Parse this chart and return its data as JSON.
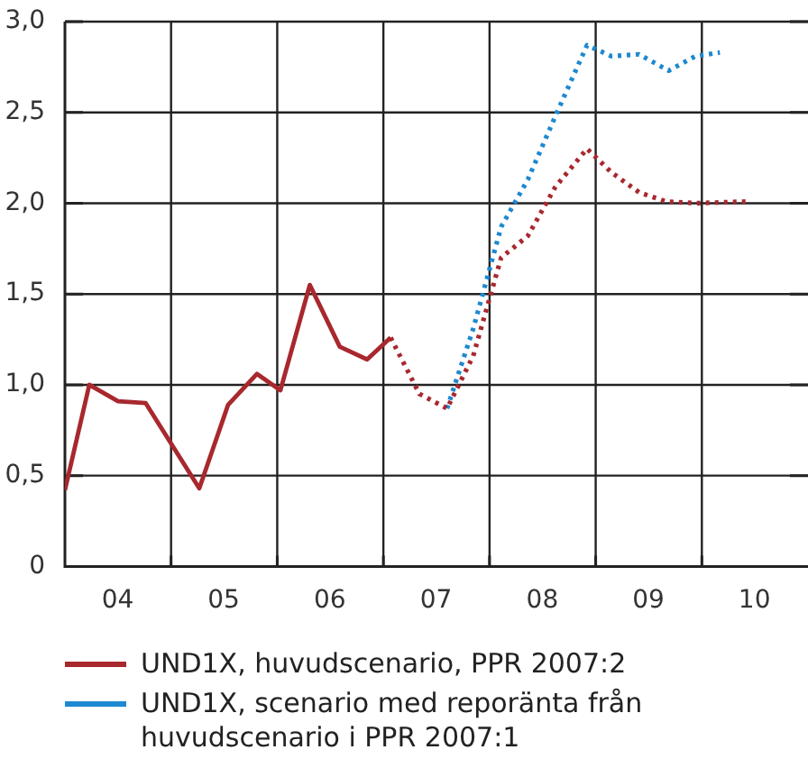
{
  "chart_data": {
    "type": "line",
    "legend": "bottom",
    "grid": true,
    "marker": "none",
    "xlim": [
      "2004-01-01",
      "2011-01-01"
    ],
    "xticks": [
      {
        "value": "2005-01-01",
        "label": null
      },
      {
        "value": "2006-01-01",
        "label": null
      },
      {
        "value": "2007-01-01",
        "label": null
      },
      {
        "value": "2008-01-01",
        "label": null
      },
      {
        "value": "2009-01-01",
        "label": null
      },
      {
        "value": "2010-01-01",
        "label": null
      },
      {
        "value": "2004-07-01",
        "label": "04"
      },
      {
        "value": "2005-07-01",
        "label": "05"
      },
      {
        "value": "2006-07-01",
        "label": "06"
      },
      {
        "value": "2007-07-01",
        "label": "07"
      },
      {
        "value": "2008-07-01",
        "label": "08"
      },
      {
        "value": "2009-07-01",
        "label": "09"
      },
      {
        "value": "2010-07-01",
        "label": "10"
      }
    ],
    "ylim": [
      0,
      3
    ],
    "yticks": [
      0,
      {
        "value": 0.5,
        "label": "0,5"
      },
      {
        "value": 1,
        "label": "1,0"
      },
      {
        "value": 1.5,
        "label": "1,5"
      },
      {
        "value": 2,
        "label": "2,0"
      },
      {
        "value": 2.5,
        "label": "2,5"
      },
      {
        "value": 3,
        "label": "3,0"
      }
    ],
    "series": [
      {
        "name": "UND1X, huvudscenario, PPR 2007:2",
        "color": "#a8282e",
        "line_style": "solid",
        "x": [
          "2004-01-01",
          "2004-03-25",
          "2004-07-02",
          "2004-10-05",
          "2005-04-08",
          "2005-07-16",
          "2005-10-23",
          "2006-01-12",
          "2006-04-23",
          "2006-08-04",
          "2006-11-06",
          "2007-01-26"
        ],
        "values": [
          0.42,
          1.0,
          0.91,
          0.9,
          0.43,
          0.89,
          1.06,
          0.97,
          1.55,
          1.21,
          1.14,
          1.26
        ]
      },
      {
        "color": "#a8282e",
        "line_style": "dotted",
        "x": [
          "2007-01-26",
          "2007-05-05",
          "2007-08-08",
          "2007-11-06",
          "2008-02-10",
          "2008-05-12",
          "2008-08-15",
          "2008-12-02",
          "2009-02-24",
          "2009-05-30",
          "2009-08-29",
          "2009-12-10",
          "2010-06-14"
        ],
        "values": [
          1.26,
          0.95,
          0.87,
          1.16,
          1.7,
          1.82,
          2.09,
          2.3,
          2.17,
          2.06,
          2.01,
          2.0,
          2.01
        ]
      },
      {
        "name": "UND1X, scenario med reporänta från huvudscenario i PPR 2007:1",
        "color": "#1e88d0",
        "line_style": "dotted",
        "x": [
          "2007-08-08",
          "2007-11-06",
          "2008-02-10",
          "2008-05-12",
          "2008-08-15",
          "2008-12-02",
          "2009-02-24",
          "2009-05-30",
          "2009-09-09",
          "2009-12-10",
          "2010-03-04"
        ],
        "values": [
          0.87,
          1.31,
          1.87,
          2.13,
          2.48,
          2.87,
          2.81,
          2.82,
          2.73,
          2.81,
          2.83
        ]
      }
    ]
  }
}
